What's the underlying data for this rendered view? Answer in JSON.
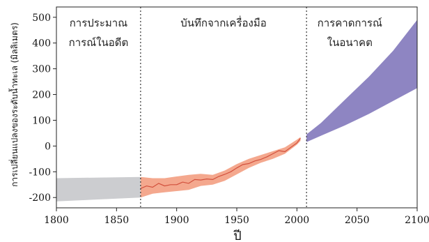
{
  "chart_data": {
    "type": "area",
    "xlabel": "ปี",
    "ylabel": "การเปลี่ยนแปลงของระดับน้ำทะเล (มิลลิเมตร)",
    "xlim": [
      1800,
      2100
    ],
    "ylim": [
      -240,
      540
    ],
    "x_ticks": [
      1800,
      1850,
      1900,
      1950,
      2000,
      2050,
      2100
    ],
    "y_ticks": [
      -200,
      -100,
      0,
      100,
      200,
      300,
      400,
      500
    ],
    "grid": false,
    "dividers": [
      1870,
      2008
    ],
    "regions": [
      {
        "lines": [
          "การประมาณ",
          "การณ์ในอดีต"
        ],
        "x": 1835
      },
      {
        "lines": [
          "บันทึกจากเครื่องมือ"
        ],
        "x": 1939
      },
      {
        "lines": [
          "การคาดการณ์",
          "ในอนาคต"
        ],
        "x": 2044
      }
    ],
    "bands": [
      {
        "color": "#cccdd0",
        "x": [
          1800,
          1870
        ],
        "upper": [
          -125,
          -120
        ],
        "lower": [
          -215,
          -200
        ]
      },
      {
        "color": "#f4a88e",
        "x": [
          1870,
          1880,
          1890,
          1900,
          1910,
          1920,
          1930,
          1940,
          1950,
          1960,
          1970,
          1980,
          1990,
          2000,
          2003
        ],
        "upper": [
          -120,
          -125,
          -125,
          -118,
          -112,
          -108,
          -112,
          -95,
          -70,
          -50,
          -35,
          -20,
          -5,
          25,
          35
        ],
        "lower": [
          -200,
          -185,
          -180,
          -175,
          -170,
          -155,
          -150,
          -135,
          -110,
          -85,
          -65,
          -50,
          -30,
          5,
          20
        ]
      },
      {
        "color": "#8e85c2",
        "x": [
          2008,
          2020,
          2040,
          2060,
          2080,
          2100
        ],
        "upper": [
          45,
          90,
          180,
          270,
          370,
          490
        ],
        "lower": [
          15,
          40,
          80,
          125,
          175,
          225
        ]
      }
    ],
    "series": [
      {
        "color": "#d2503c",
        "x": [
          1870,
          1875,
          1880,
          1885,
          1890,
          1895,
          1900,
          1905,
          1910,
          1915,
          1920,
          1925,
          1930,
          1935,
          1940,
          1945,
          1950,
          1955,
          1960,
          1965,
          1970,
          1975,
          1980,
          1985,
          1990,
          1995,
          2000,
          2003
        ],
        "values": [
          -165,
          -155,
          -160,
          -145,
          -155,
          -150,
          -150,
          -140,
          -145,
          -130,
          -132,
          -128,
          -130,
          -118,
          -110,
          -100,
          -85,
          -72,
          -68,
          -58,
          -52,
          -42,
          -30,
          -18,
          -22,
          -5,
          12,
          30
        ]
      }
    ]
  }
}
